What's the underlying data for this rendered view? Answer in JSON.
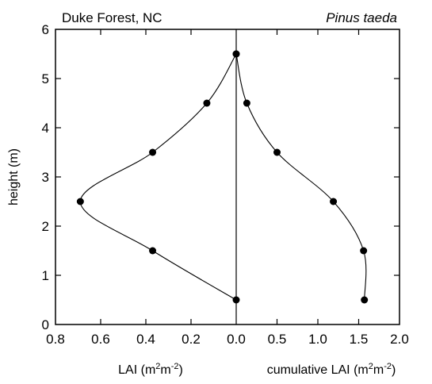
{
  "chart_data": {
    "type": "line",
    "left_annotation": "Duke Forest, NC",
    "right_annotation": "Pinus taeda",
    "ylabel": "height (m)",
    "ylim": [
      0,
      6
    ],
    "y_ticks": [
      0,
      1,
      2,
      3,
      4,
      5,
      6
    ],
    "y_tick_labels": [
      "0",
      "1",
      "2",
      "3",
      "4",
      "5",
      "6"
    ],
    "grid": false,
    "panels": [
      {
        "id": "lai",
        "xlabel_base": "LAI (m",
        "xlabel_sup1": "2",
        "xlabel_mid": "m",
        "xlabel_sup2": "-2",
        "xlabel_end": ")",
        "xlim": [
          0.8,
          0.0
        ],
        "x_ticks": [
          0.8,
          0.6,
          0.4,
          0.2,
          0.0
        ],
        "x_tick_labels": [
          "0.8",
          "0.6",
          "0.4",
          "0.2",
          "0.0"
        ],
        "points": [
          {
            "x": 0.0,
            "y": 0.5
          },
          {
            "x": 0.37,
            "y": 1.5
          },
          {
            "x": 0.69,
            "y": 2.5
          },
          {
            "x": 0.37,
            "y": 3.5
          },
          {
            "x": 0.13,
            "y": 4.5
          },
          {
            "x": 0.0,
            "y": 5.5
          }
        ]
      },
      {
        "id": "cumulative",
        "xlabel_base": "cumulative LAI (m",
        "xlabel_sup1": "2",
        "xlabel_mid": "m",
        "xlabel_sup2": "-2",
        "xlabel_end": ")",
        "xlim": [
          0.0,
          2.0
        ],
        "x_ticks": [
          0.5,
          1.0,
          1.5,
          2.0
        ],
        "x_tick_labels": [
          "0.5",
          "1.0",
          "1.5",
          "2.0"
        ],
        "points": [
          {
            "x": 0.0,
            "y": 5.5
          },
          {
            "x": 0.13,
            "y": 4.5
          },
          {
            "x": 0.5,
            "y": 3.5
          },
          {
            "x": 1.19,
            "y": 2.5
          },
          {
            "x": 1.56,
            "y": 1.5
          },
          {
            "x": 1.57,
            "y": 0.5
          }
        ]
      }
    ]
  }
}
